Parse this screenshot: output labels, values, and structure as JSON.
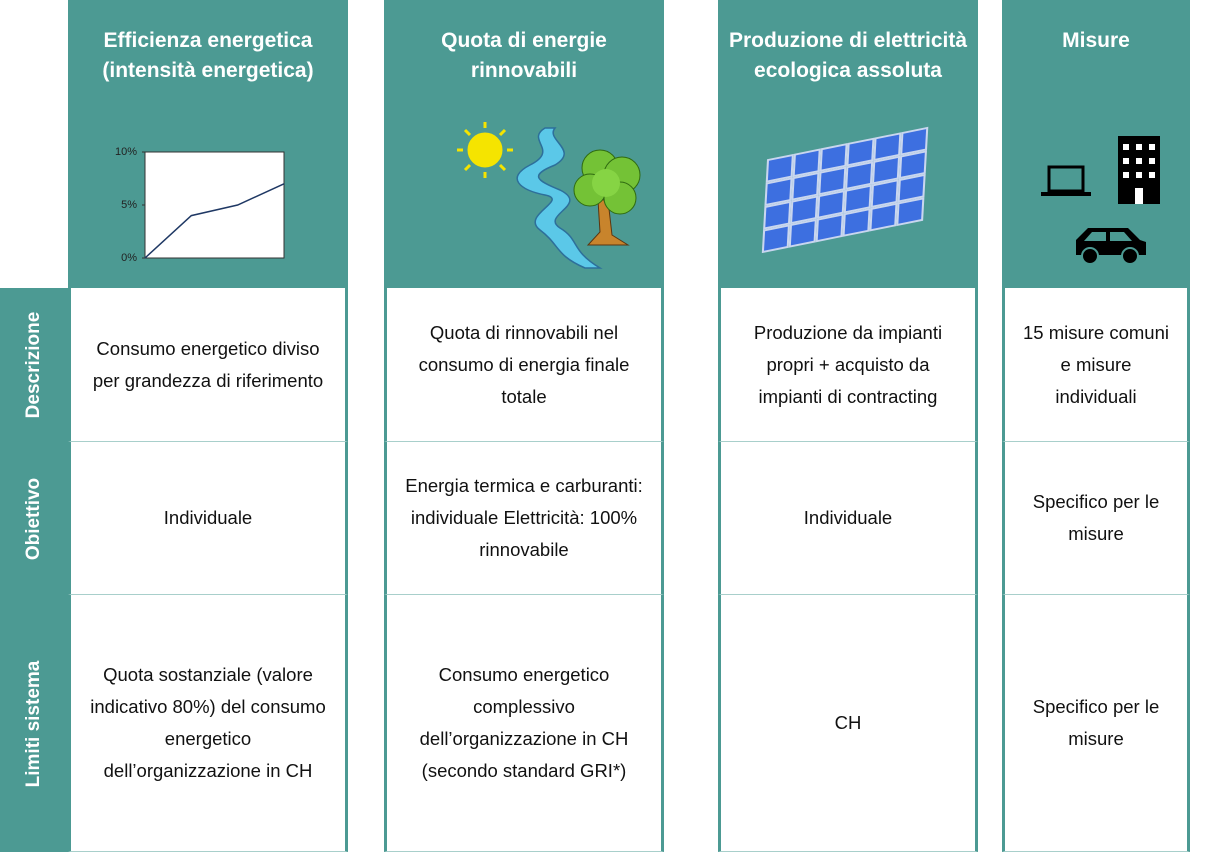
{
  "columns": [
    {
      "title": "Efficienza energetica (intensità energetica)",
      "chart": {
        "ylim": [
          0,
          10
        ],
        "yticks": [
          {
            "value": 0,
            "label": "0%"
          },
          {
            "value": 5,
            "label": "5%"
          },
          {
            "value": 10,
            "label": "10%"
          }
        ],
        "values": [
          0,
          4,
          5,
          7
        ]
      }
    },
    {
      "title": "Quota di energie rinnovabili"
    },
    {
      "title": "Produzione di elettricità ecologica assoluta"
    },
    {
      "title": "Misure"
    }
  ],
  "rows": [
    {
      "label": "Descrizione",
      "cells": [
        "Consumo energetico diviso per grandezza di riferimento",
        "Quota di rinnovabili nel consumo di energia finale totale",
        "Produzione da impianti propri + acquisto da impianti di contracting",
        "15 misure comuni e misure individuali"
      ]
    },
    {
      "label": "Obiettivo",
      "cells": [
        "Individuale",
        "Energia termica e carburanti: individuale Elettricità: 100% rinnovabile",
        "Individuale",
        "Specifico per le misure"
      ]
    },
    {
      "label": "Limiti sistema",
      "cells": [
        "Quota sostanziale (valore indicativo 80%) del consumo energetico dell’organizzazione in CH",
        "Consumo energetico complessivo dell’organizzazione in CH (secondo standard GRI*)",
        "CH",
        "Specifico per le misure"
      ]
    }
  ]
}
